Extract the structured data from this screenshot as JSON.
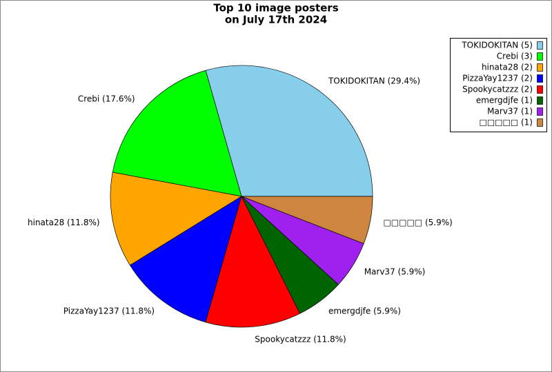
{
  "chart_data": {
    "type": "pie",
    "title_lines": [
      "Top 10 image posters",
      "on July 17th 2024"
    ],
    "categories": [
      "TOKIDOKITAN",
      "Crebi",
      "hinata28",
      "PizzaYay1237",
      "Spookycatzzz",
      "emergdjfe",
      "Marv37",
      "□□□□□"
    ],
    "values": [
      5,
      3,
      2,
      2,
      2,
      1,
      1,
      1
    ],
    "value_labels": [
      "TOKIDOKITAN (29.4%)",
      "Crebi (17.6%)",
      "hinata28 (11.8%)",
      "PizzaYay1237 (11.8%)",
      "Spookycatzzz (11.8%)",
      "emergdjfe (5.9%)",
      "Marv37 (5.9%)",
      "□□□□□ (5.9%)"
    ],
    "legend_labels": [
      "TOKIDOKITAN (5)",
      "Crebi (3)",
      "hinata28 (2)",
      "PizzaYay1237 (2)",
      "Spookycatzzz (2)",
      "emergdjfe (1)",
      "Marv37 (1)",
      "□□□□□ (1)"
    ],
    "colors": [
      "#87ceeb",
      "#00ff00",
      "#ffa500",
      "#0000ff",
      "#ff0000",
      "#006400",
      "#a020f0",
      "#cd853f"
    ],
    "legend": "upper right"
  }
}
